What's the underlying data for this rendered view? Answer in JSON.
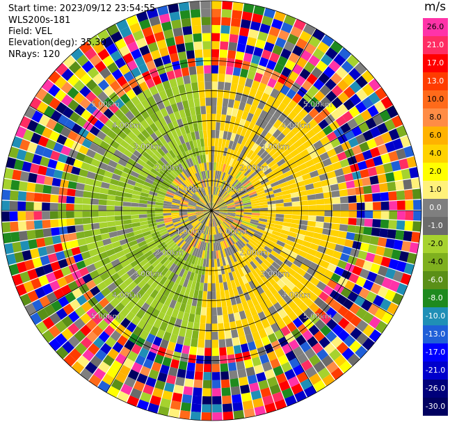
{
  "header": {
    "start_time": "Start time: 2023/09/12 23:54:55",
    "instrument": "WLS200s-181",
    "field": "Field: VEL",
    "elevation": "Elevation(deg): 35.30",
    "nrays": "NRays: 120"
  },
  "colorbar": {
    "unit": "m/s",
    "ticks": [
      "26.0",
      "21.0",
      "17.0",
      "13.0",
      "10.0",
      "8.0",
      "6.0",
      "4.0",
      "2.0",
      "1.0",
      "0.0",
      "-1.0",
      "-2.0",
      "-4.0",
      "-6.0",
      "-8.0",
      "-10.0",
      "-13.0",
      "-17.0",
      "-21.0",
      "-26.0",
      "-30.0"
    ],
    "colors": [
      "#ff33a8",
      "#ff2d63",
      "#ff0000",
      "#ff3c00",
      "#ff6a1a",
      "#ff8c45",
      "#ffb200",
      "#ffd200",
      "#ffff00",
      "#fff17a",
      "#7f7f7f",
      "#6b6b6b",
      "#a6d22e",
      "#7fb01f",
      "#5a8f17",
      "#1e8a1e",
      "#1f8fb6",
      "#1f5fd8",
      "#0000ff",
      "#0000cc",
      "#00007a",
      "#000060"
    ]
  },
  "chart_data": {
    "type": "ppi",
    "field": "VEL",
    "n_rays": 120,
    "range_ring_labels": [
      "1.00km",
      "2.00km",
      "3.00km",
      "4.00km",
      "5.00km"
    ],
    "range_rings_km": [
      1,
      2,
      3,
      4,
      5
    ],
    "max_range_km": 7,
    "spoke_angles_deg": [
      0,
      30,
      60,
      90,
      120,
      150,
      180,
      210,
      240,
      270,
      300,
      330
    ],
    "vmin": -30,
    "vmax": 30,
    "approx_velocity_by_range_km": [
      {
        "range": [
          0,
          1.5
        ],
        "dominant": "0.0 to 2.0 (grey/yellow, near-zero)"
      },
      {
        "range": [
          1.5,
          4.5
        ],
        "dominant": "yellow (+2.0) east sector, green (-2.0) west sector"
      },
      {
        "range": [
          4.5,
          7.0
        ],
        "dominant": "noisy, full colorbar range (-30 to 26)"
      }
    ]
  }
}
